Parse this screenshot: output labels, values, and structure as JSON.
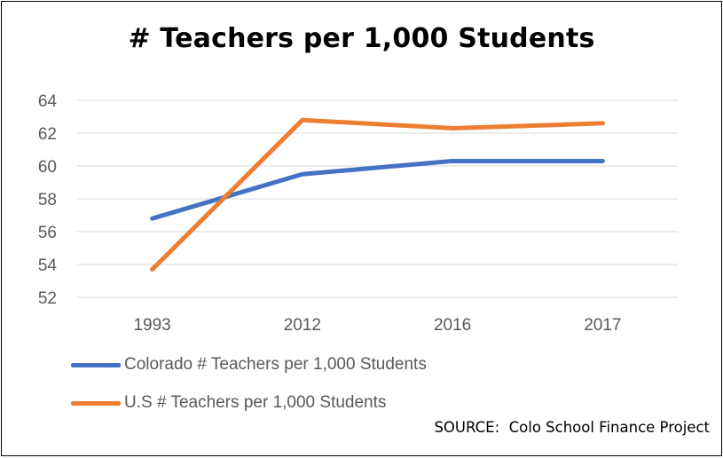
{
  "chart_data": {
    "type": "line",
    "title": "# Teachers per 1,000 Students",
    "xlabel": "",
    "ylabel": "",
    "categories": [
      "1993",
      "2012",
      "2016",
      "2017"
    ],
    "ylim": [
      52,
      64
    ],
    "yticks": [
      "52",
      "54",
      "56",
      "58",
      "60",
      "62",
      "64"
    ],
    "grid": true,
    "legend_position": "bottom-left",
    "series": [
      {
        "name": "Colorado # Teachers per 1,000 Students",
        "color": "#4472C4",
        "values": [
          56.8,
          59.5,
          60.3,
          60.3
        ]
      },
      {
        "name": "U.S # Teachers per 1,000 Students",
        "color": "#ED7D31",
        "values": [
          53.7,
          62.8,
          62.3,
          62.6
        ]
      }
    ],
    "source": "SOURCE:  Colo School Finance Project"
  }
}
